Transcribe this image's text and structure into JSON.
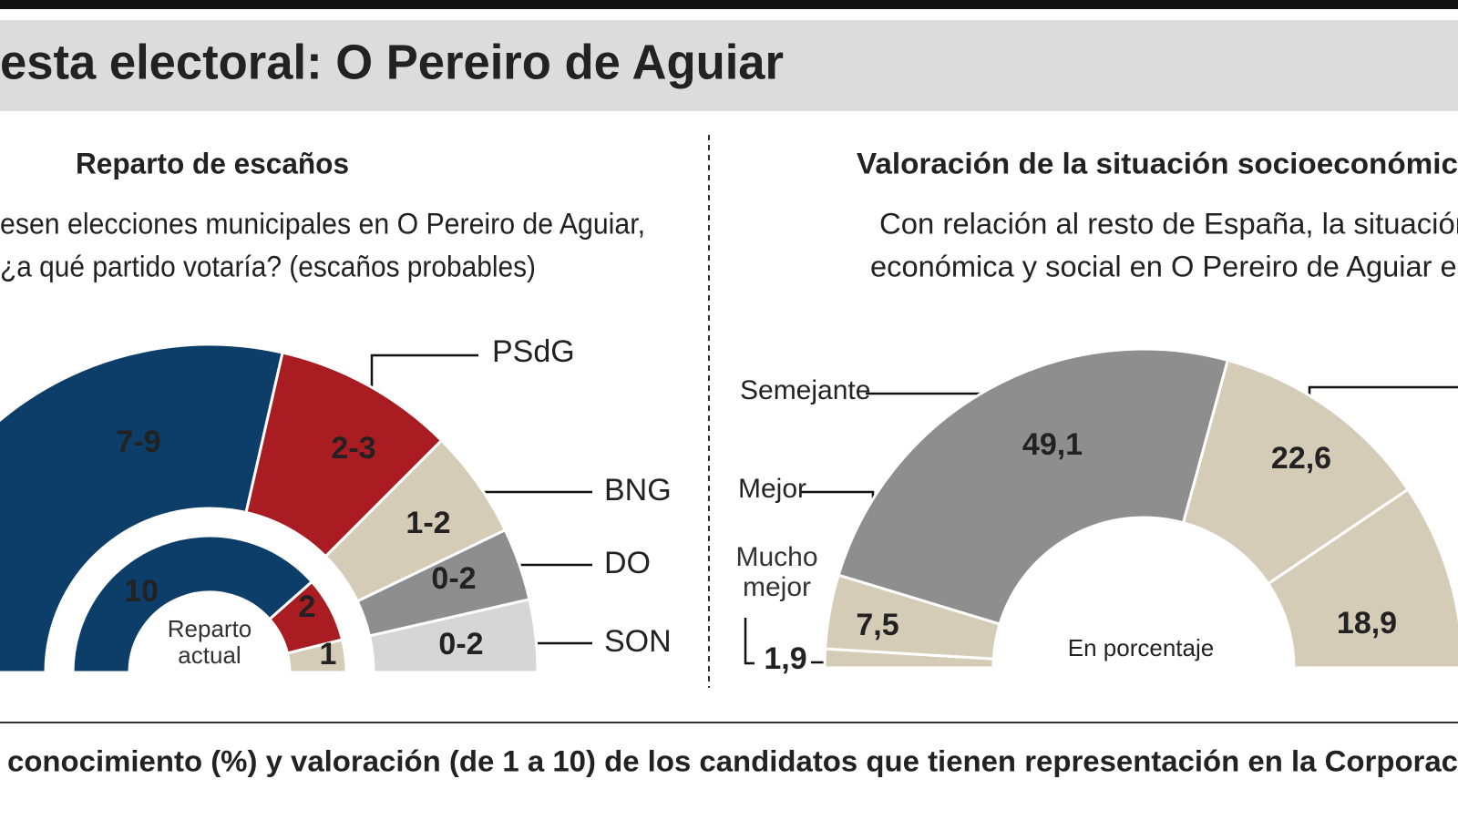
{
  "page_title": "esta electoral: O Pereiro de Aguiar",
  "footer": "conocimiento (%) y valoración (de 1 a 10) de los candidatos que tienen representación en la Corporac",
  "chart_data": [
    {
      "type": "half-donut",
      "title": "Reparto de escaños",
      "subtitle": [
        "esen elecciones municipales en O Pereiro de Aguiar,",
        "¿a qué partido votaría? (escaños probables)"
      ],
      "categories": [
        null,
        "PSdG",
        "BNG",
        "DO",
        "SON"
      ],
      "colors": [
        "#0d3e69",
        "#a81c22",
        "#d5ccb8",
        "#8e8e8e",
        "#d6d6d6"
      ],
      "series": [
        {
          "low": [
            7,
            2,
            1,
            0,
            0
          ],
          "high": [
            9,
            3,
            2,
            2,
            2
          ],
          "value_labels": [
            "7-9",
            "2-3",
            "1-2",
            "0-2",
            "0-2"
          ]
        },
        {
          "name": "Reparto actual",
          "values": [
            10,
            2,
            1,
            null,
            null
          ]
        }
      ]
    },
    {
      "type": "half-donut",
      "title": "Valoración de la situación socioeconómic",
      "subtitle": [
        "Con relación al resto de España, la situación",
        "económica y social en O Pereiro de Aguiar es"
      ],
      "categories": [
        "Mucho mejor",
        "Mejor",
        "Semejante",
        null,
        null
      ],
      "colors": [
        "#d5ccb8",
        "#d5ccb8",
        "#8e8e8e",
        "#d5ccb8",
        "#d5ccb8"
      ],
      "values": [
        1.9,
        7.5,
        49.1,
        22.6,
        18.9
      ],
      "value_labels": [
        "1,9",
        "7,5",
        "49,1",
        "22,6",
        "18,9"
      ],
      "annotation": "En porcentaje"
    }
  ]
}
